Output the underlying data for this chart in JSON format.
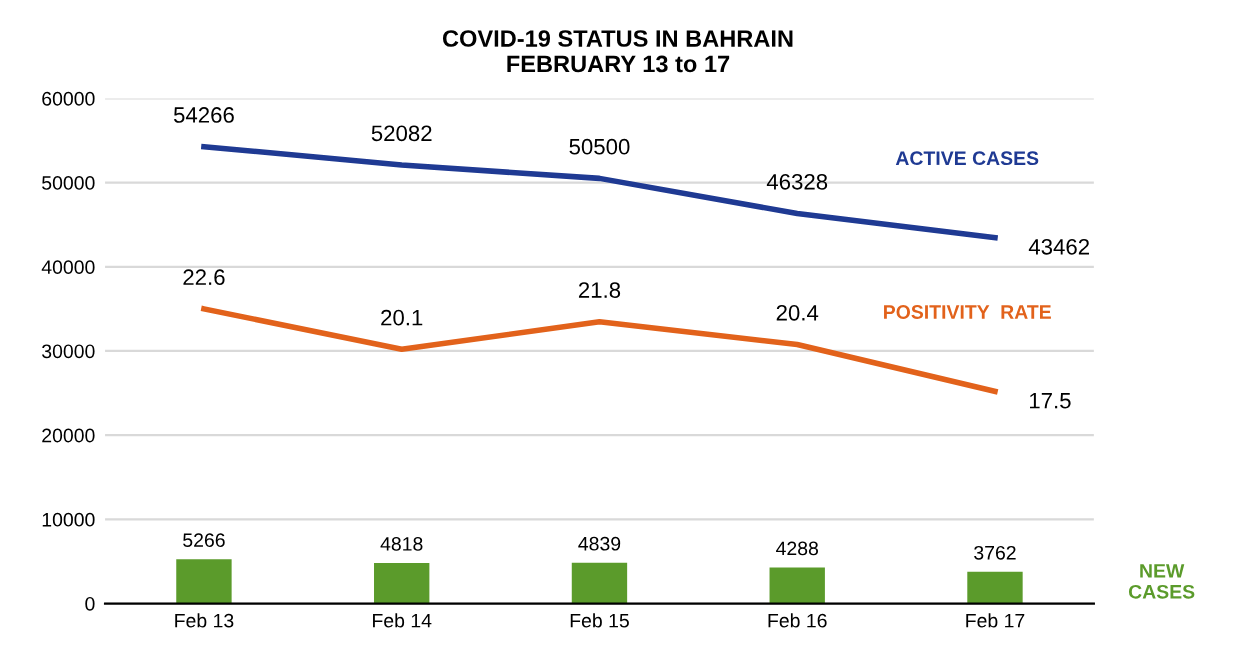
{
  "chart_data": {
    "type": "line",
    "title": "COVID-19 STATUS IN BAHRAIN\nFEBRUARY 13 to 17",
    "categories": [
      "Feb 13",
      "Feb 14",
      "Feb 15",
      "Feb 16",
      "Feb 17"
    ],
    "series": [
      {
        "name": "ACTIVE CASES",
        "color": "#1f3a93",
        "values": [
          54266,
          52082,
          50500,
          46328,
          43462
        ]
      },
      {
        "name": "POSITIVITY  RATE",
        "color": "#e2621b",
        "values": [
          22.6,
          20.1,
          21.8,
          20.4,
          17.5
        ],
        "axis": "y2"
      },
      {
        "name": "NEW\nCASES",
        "type": "bar",
        "color": "#5b9b2b",
        "values": [
          5266,
          4818,
          4839,
          4288,
          3762
        ]
      }
    ],
    "ylim": [
      0,
      60000
    ],
    "yticks": [
      0,
      10000,
      20000,
      30000,
      40000,
      50000,
      60000
    ],
    "y2lim": [
      4.4,
      35.6
    ],
    "grid": "y",
    "data_labels": true
  }
}
